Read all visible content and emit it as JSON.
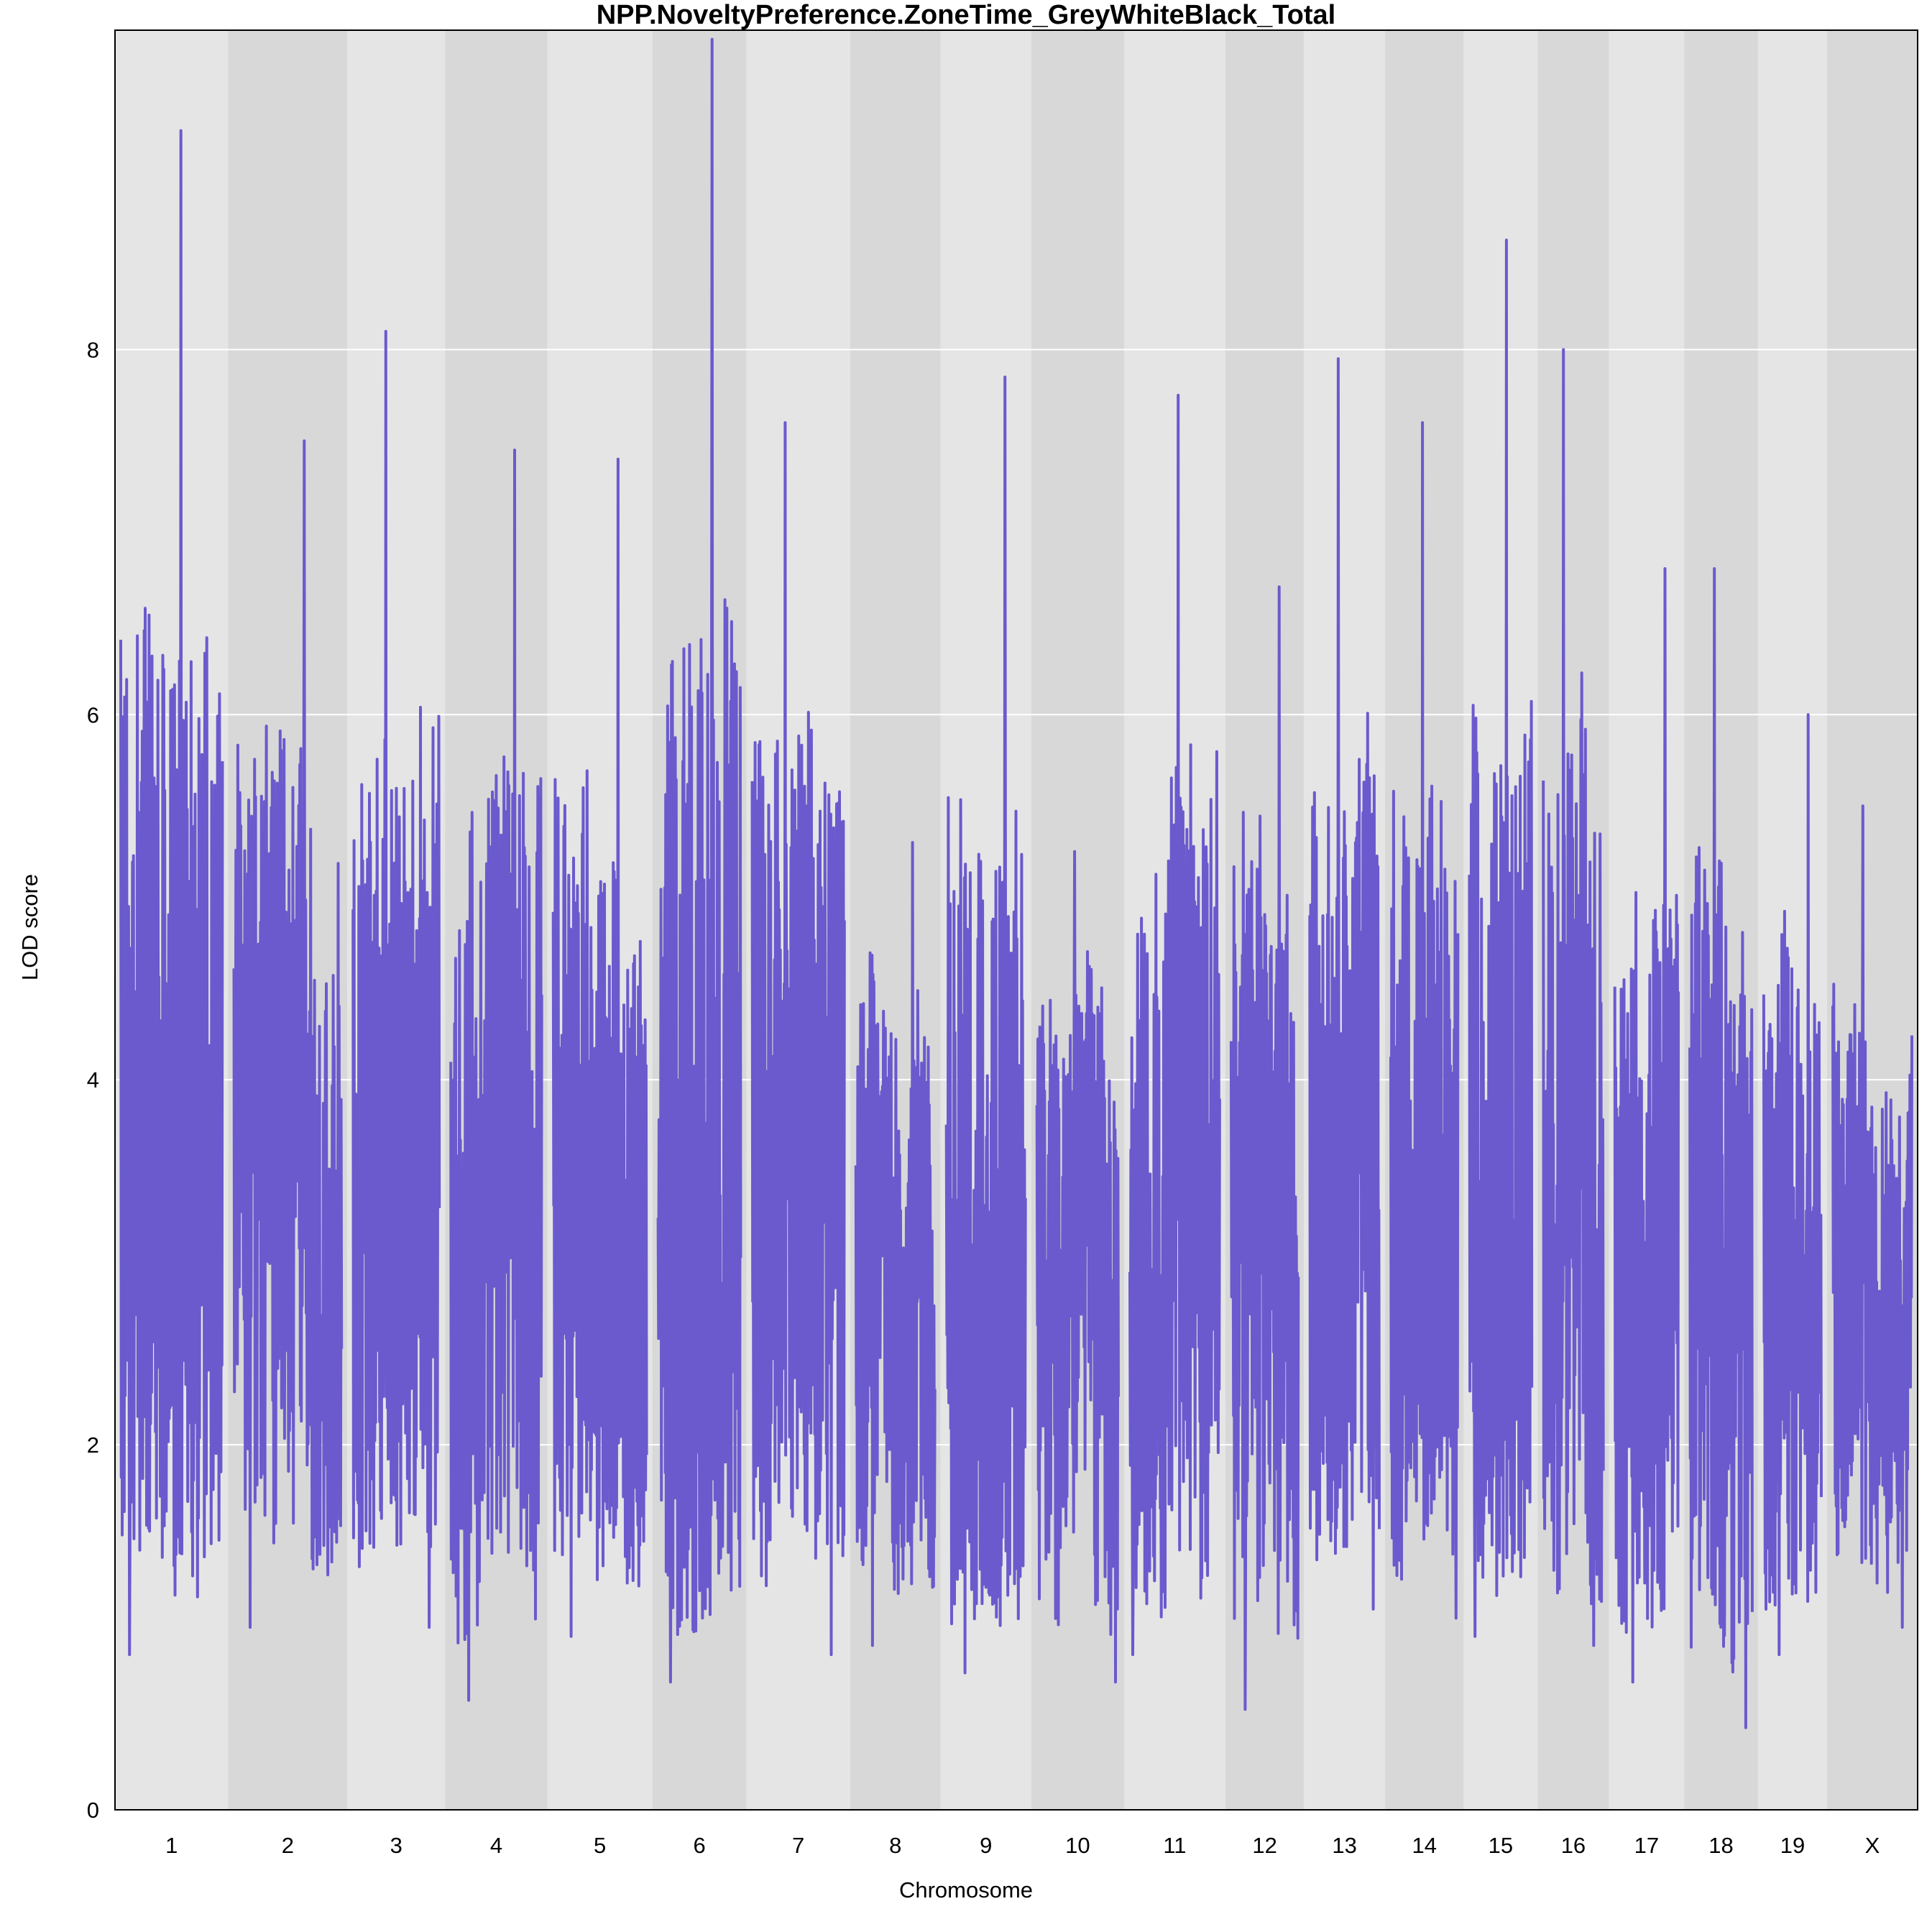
{
  "chart_data": {
    "type": "line",
    "title": "NPP.NoveltyPreference.ZoneTime_GreyWhiteBlack_Total",
    "xlabel": "Chromosome",
    "ylabel": "LOD score",
    "ylim": [
      0,
      9.75
    ],
    "yticks": [
      0,
      2,
      4,
      6,
      8
    ],
    "grid": "horizontal white lines at y ticks; alternating grey bands per chromosome",
    "colors": {
      "line": "#6a5acd",
      "band_light": "#e5e5e5",
      "band_dark": "#d8d8d8",
      "grid": "#ffffff"
    },
    "chromosomes": [
      {
        "label": "1",
        "length_cM": 95,
        "max_lod": 9.2,
        "min_lod": 0.85
      },
      {
        "label": "2",
        "length_cM": 100,
        "max_lod": 7.5,
        "min_lod": 1.0
      },
      {
        "label": "3",
        "length_cM": 82,
        "max_lod": 8.1,
        "min_lod": 1.0
      },
      {
        "label": "4",
        "length_cM": 86,
        "max_lod": 7.45,
        "min_lod": 0.6
      },
      {
        "label": "5",
        "length_cM": 88,
        "max_lod": 7.4,
        "min_lod": 0.95
      },
      {
        "label": "6",
        "length_cM": 79,
        "max_lod": 9.7,
        "min_lod": 0.7
      },
      {
        "label": "7",
        "length_cM": 87,
        "max_lod": 7.6,
        "min_lod": 0.85
      },
      {
        "label": "8",
        "length_cM": 76,
        "max_lod": 5.3,
        "min_lod": 0.9
      },
      {
        "label": "9",
        "length_cM": 76,
        "max_lod": 7.85,
        "min_lod": 0.75
      },
      {
        "label": "10",
        "length_cM": 78,
        "max_lod": 5.25,
        "min_lod": 0.7
      },
      {
        "label": "11",
        "length_cM": 85,
        "max_lod": 7.75,
        "min_lod": 0.85
      },
      {
        "label": "12",
        "length_cM": 66,
        "max_lod": 6.7,
        "min_lod": 0.55
      },
      {
        "label": "13",
        "length_cM": 68,
        "max_lod": 7.95,
        "min_lod": 1.1
      },
      {
        "label": "14",
        "length_cM": 66,
        "max_lod": 7.6,
        "min_lod": 1.05
      },
      {
        "label": "15",
        "length_cM": 62,
        "max_lod": 8.6,
        "min_lod": 0.95
      },
      {
        "label": "16",
        "length_cM": 60,
        "max_lod": 8.0,
        "min_lod": 0.9
      },
      {
        "label": "17",
        "length_cM": 63,
        "max_lod": 6.8,
        "min_lod": 0.7
      },
      {
        "label": "18",
        "length_cM": 62,
        "max_lod": 6.8,
        "min_lod": 0.45
      },
      {
        "label": "19",
        "length_cM": 58,
        "max_lod": 6.0,
        "min_lod": 0.85
      },
      {
        "label": "X",
        "length_cM": 76,
        "max_lod": 5.5,
        "min_lod": 1.0
      }
    ]
  }
}
